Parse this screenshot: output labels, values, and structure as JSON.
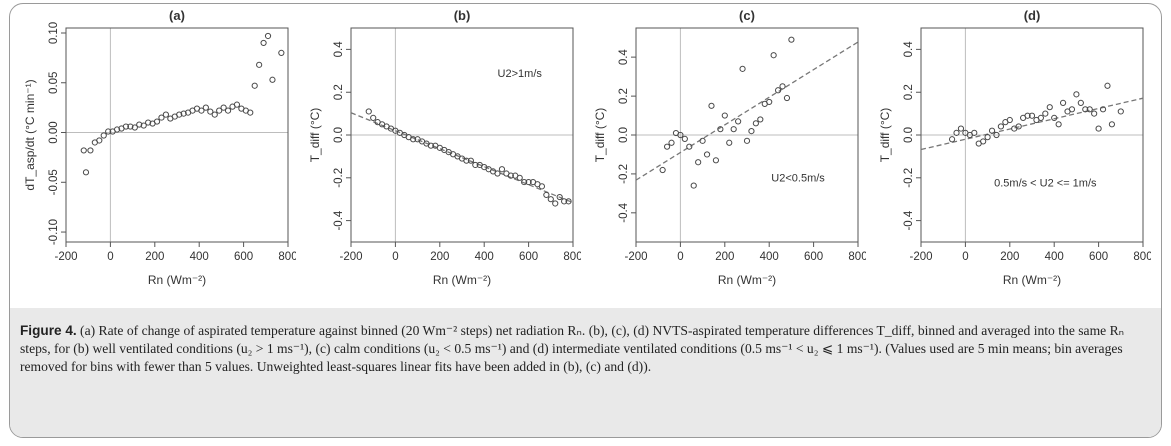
{
  "chart_data": [
    {
      "panel": "(a)",
      "type": "scatter",
      "title": "(a)",
      "xlabel": "Rn (Wm⁻²)",
      "ylabel": "dT_asp/dt (°C min⁻¹)",
      "xlim": [
        -200,
        800
      ],
      "ylim": [
        -0.11,
        0.105
      ],
      "xticks": [
        -200,
        0,
        200,
        400,
        600,
        800
      ],
      "yticks": [
        -0.1,
        -0.05,
        0.0,
        0.05,
        0.1
      ],
      "ytick_labels": [
        "-0.10",
        "-0.05",
        "0.00",
        "0.05",
        "0.10"
      ],
      "fit_line": null,
      "annotation": "",
      "series": [
        {
          "points": [
            [
              -120,
              -0.018
            ],
            [
              -110,
              -0.04
            ],
            [
              -90,
              -0.018
            ],
            [
              -70,
              -0.01
            ],
            [
              -50,
              -0.008
            ],
            [
              -30,
              -0.003
            ],
            [
              -10,
              0.001
            ],
            [
              10,
              0.001
            ],
            [
              30,
              0.003
            ],
            [
              50,
              0.004
            ],
            [
              70,
              0.006
            ],
            [
              90,
              0.006
            ],
            [
              110,
              0.005
            ],
            [
              130,
              0.008
            ],
            [
              150,
              0.007
            ],
            [
              170,
              0.01
            ],
            [
              190,
              0.009
            ],
            [
              210,
              0.011
            ],
            [
              230,
              0.015
            ],
            [
              250,
              0.018
            ],
            [
              270,
              0.014
            ],
            [
              290,
              0.016
            ],
            [
              310,
              0.018
            ],
            [
              330,
              0.019
            ],
            [
              350,
              0.02
            ],
            [
              370,
              0.022
            ],
            [
              390,
              0.024
            ],
            [
              410,
              0.022
            ],
            [
              430,
              0.025
            ],
            [
              450,
              0.021
            ],
            [
              470,
              0.018
            ],
            [
              490,
              0.022
            ],
            [
              510,
              0.025
            ],
            [
              530,
              0.022
            ],
            [
              550,
              0.026
            ],
            [
              570,
              0.028
            ],
            [
              590,
              0.024
            ],
            [
              610,
              0.022
            ],
            [
              630,
              0.02
            ],
            [
              650,
              0.047
            ],
            [
              670,
              0.068
            ],
            [
              690,
              0.09
            ],
            [
              710,
              0.097
            ],
            [
              730,
              0.053
            ],
            [
              770,
              0.08
            ]
          ]
        }
      ]
    },
    {
      "panel": "(b)",
      "type": "scatter",
      "title": "(b)",
      "xlabel": "Rn (Wm⁻²)",
      "ylabel": "T_diff (°C)",
      "xlim": [
        -200,
        800
      ],
      "ylim": [
        -0.5,
        0.5
      ],
      "xticks": [
        -200,
        0,
        200,
        400,
        600,
        800
      ],
      "yticks": [
        -0.4,
        -0.2,
        0.0,
        0.2,
        0.4
      ],
      "ytick_labels": [
        "-0.4",
        "-0.2",
        "0.0",
        "0.2",
        "0.4"
      ],
      "fit_line": {
        "slope": -0.00042,
        "intercept": 0.02
      },
      "annotation": "U2>1m/s",
      "series": [
        {
          "points": [
            [
              -120,
              0.11
            ],
            [
              -100,
              0.08
            ],
            [
              -80,
              0.06
            ],
            [
              -60,
              0.05
            ],
            [
              -40,
              0.04
            ],
            [
              -20,
              0.03
            ],
            [
              0,
              0.02
            ],
            [
              20,
              0.01
            ],
            [
              40,
              0.0
            ],
            [
              60,
              -0.01
            ],
            [
              80,
              -0.02
            ],
            [
              100,
              -0.02
            ],
            [
              120,
              -0.03
            ],
            [
              140,
              -0.04
            ],
            [
              160,
              -0.05
            ],
            [
              180,
              -0.05
            ],
            [
              200,
              -0.06
            ],
            [
              220,
              -0.07
            ],
            [
              240,
              -0.08
            ],
            [
              260,
              -0.09
            ],
            [
              280,
              -0.1
            ],
            [
              300,
              -0.11
            ],
            [
              320,
              -0.12
            ],
            [
              340,
              -0.12
            ],
            [
              360,
              -0.14
            ],
            [
              380,
              -0.14
            ],
            [
              400,
              -0.15
            ],
            [
              420,
              -0.16
            ],
            [
              440,
              -0.17
            ],
            [
              460,
              -0.18
            ],
            [
              480,
              -0.16
            ],
            [
              500,
              -0.18
            ],
            [
              520,
              -0.19
            ],
            [
              540,
              -0.19
            ],
            [
              560,
              -0.2
            ],
            [
              580,
              -0.22
            ],
            [
              600,
              -0.22
            ],
            [
              620,
              -0.22
            ],
            [
              640,
              -0.23
            ],
            [
              660,
              -0.24
            ],
            [
              680,
              -0.28
            ],
            [
              700,
              -0.3
            ],
            [
              720,
              -0.32
            ],
            [
              740,
              -0.29
            ],
            [
              760,
              -0.31
            ],
            [
              780,
              -0.31
            ]
          ]
        }
      ]
    },
    {
      "panel": "(c)",
      "type": "scatter",
      "title": "(c)",
      "xlabel": "Rn (Wm⁻²)",
      "ylabel": "T_diff (°C)",
      "xlim": [
        -200,
        800
      ],
      "ylim": [
        -0.55,
        0.55
      ],
      "xticks": [
        -200,
        0,
        200,
        400,
        600,
        800
      ],
      "yticks": [
        -0.4,
        -0.2,
        0.0,
        0.2,
        0.4
      ],
      "ytick_labels": [
        "-0.4",
        "-0.2",
        "0.0",
        "0.2",
        "0.4"
      ],
      "fit_line": {
        "slope": 0.00071,
        "intercept": -0.09
      },
      "annotation": "U2<0.5m/s",
      "series": [
        {
          "points": [
            [
              -80,
              -0.18
            ],
            [
              -60,
              -0.06
            ],
            [
              -40,
              -0.04
            ],
            [
              -20,
              0.01
            ],
            [
              0,
              0.0
            ],
            [
              20,
              -0.02
            ],
            [
              40,
              -0.06
            ],
            [
              60,
              -0.26
            ],
            [
              80,
              -0.14
            ],
            [
              100,
              -0.03
            ],
            [
              120,
              -0.1
            ],
            [
              140,
              0.15
            ],
            [
              160,
              -0.13
            ],
            [
              180,
              0.03
            ],
            [
              200,
              0.1
            ],
            [
              220,
              -0.04
            ],
            [
              240,
              0.03
            ],
            [
              260,
              0.07
            ],
            [
              280,
              0.34
            ],
            [
              300,
              -0.03
            ],
            [
              320,
              0.02
            ],
            [
              340,
              0.06
            ],
            [
              360,
              0.08
            ],
            [
              380,
              0.16
            ],
            [
              400,
              0.17
            ],
            [
              420,
              0.41
            ],
            [
              440,
              0.23
            ],
            [
              460,
              0.25
            ],
            [
              480,
              0.19
            ],
            [
              500,
              0.49
            ]
          ]
        }
      ]
    },
    {
      "panel": "(d)",
      "type": "scatter",
      "title": "(d)",
      "xlabel": "Rn (Wm⁻²)",
      "ylabel": "T_diff (°C)",
      "xlim": [
        -200,
        800
      ],
      "ylim": [
        -0.5,
        0.5
      ],
      "xticks": [
        -200,
        0,
        200,
        400,
        600,
        800
      ],
      "yticks": [
        -0.4,
        -0.2,
        0.0,
        0.2,
        0.4
      ],
      "ytick_labels": [
        "-0.4",
        "-0.2",
        "0.0",
        "0.2",
        "0.4"
      ],
      "fit_line": {
        "slope": 0.00024,
        "intercept": -0.02
      },
      "annotation": "0.5m/s < U2 <= 1m/s",
      "series": [
        {
          "points": [
            [
              -60,
              -0.02
            ],
            [
              -40,
              0.01
            ],
            [
              -20,
              0.03
            ],
            [
              0,
              0.01
            ],
            [
              20,
              0.0
            ],
            [
              40,
              0.01
            ],
            [
              60,
              -0.04
            ],
            [
              80,
              -0.03
            ],
            [
              100,
              -0.01
            ],
            [
              120,
              0.02
            ],
            [
              140,
              0.0
            ],
            [
              160,
              0.04
            ],
            [
              180,
              0.06
            ],
            [
              200,
              0.07
            ],
            [
              220,
              0.03
            ],
            [
              240,
              0.04
            ],
            [
              260,
              0.08
            ],
            [
              280,
              0.09
            ],
            [
              300,
              0.09
            ],
            [
              320,
              0.07
            ],
            [
              340,
              0.08
            ],
            [
              360,
              0.1
            ],
            [
              380,
              0.13
            ],
            [
              400,
              0.08
            ],
            [
              420,
              0.05
            ],
            [
              440,
              0.15
            ],
            [
              460,
              0.11
            ],
            [
              480,
              0.12
            ],
            [
              500,
              0.19
            ],
            [
              520,
              0.15
            ],
            [
              540,
              0.12
            ],
            [
              560,
              0.12
            ],
            [
              580,
              0.1
            ],
            [
              600,
              0.03
            ],
            [
              620,
              0.12
            ],
            [
              640,
              0.23
            ],
            [
              660,
              0.05
            ],
            [
              700,
              0.11
            ]
          ]
        }
      ]
    }
  ],
  "caption": {
    "label": "Figure 4.",
    "text": " (a) Rate of change of aspirated temperature against binned (20 Wm⁻² steps) net radiation Rₙ. (b), (c), (d) NVTS-aspirated temperature differences T_diff, binned and averaged into the same Rₙ steps, for (b) well ventilated conditions (u₂ > 1 ms⁻¹), (c) calm conditions (u₂ < 0.5 ms⁻¹) and (d) intermediate ventilated conditions (0.5 ms⁻¹ < u₂ ⩽ 1 ms⁻¹). (Values used are 5 min means; bin averages removed for bins with fewer than 5 values. Unweighted least-squares linear fits have been added in (b), (c) and (d))."
  },
  "colors": {
    "points": "#4a4a4a",
    "axes": "#555555",
    "zero_lines": "#bdbdbd",
    "fit_line": "#777777",
    "caption_bg": "#e9e9e9"
  }
}
